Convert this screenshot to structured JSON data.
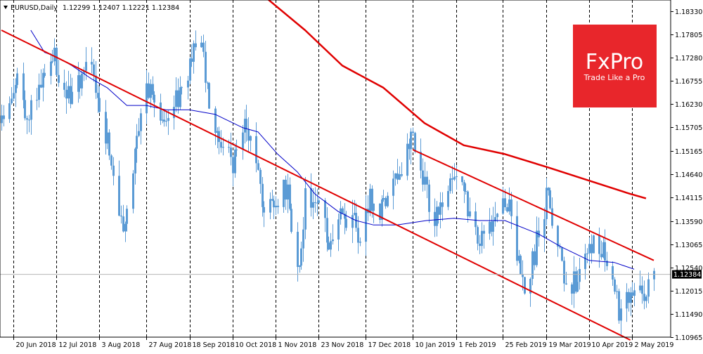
{
  "chart_data": {
    "type": "candlestick",
    "title": "EURUSD,Daily",
    "ohlc_text": "1.12299 1.12407 1.12221 1.12384",
    "current_price": 1.12384,
    "current_price_label": "1.12384",
    "ylim": [
      1.10965,
      1.18582
    ],
    "y_ticks": [
      {
        "value": 1.1833,
        "label": "1.18330"
      },
      {
        "value": 1.17805,
        "label": "1.17805"
      },
      {
        "value": 1.1728,
        "label": "1.17280"
      },
      {
        "value": 1.16755,
        "label": "1.16755"
      },
      {
        "value": 1.1623,
        "label": "1.16230"
      },
      {
        "value": 1.15705,
        "label": "1.15705"
      },
      {
        "value": 1.15165,
        "label": "1.15165"
      },
      {
        "value": 1.1464,
        "label": "1.14640"
      },
      {
        "value": 1.14115,
        "label": "1.14115"
      },
      {
        "value": 1.1359,
        "label": "1.13590"
      },
      {
        "value": 1.13065,
        "label": "1.13065"
      },
      {
        "value": 1.1254,
        "label": "1.12540"
      },
      {
        "value": 1.12015,
        "label": "1.12015"
      },
      {
        "value": 1.1149,
        "label": "1.11490"
      },
      {
        "value": 1.10965,
        "label": "1.10965"
      }
    ],
    "x_ticks": [
      {
        "date": "2018-06-20",
        "label": "20 Jun 2018"
      },
      {
        "date": "2018-07-12",
        "label": "12 Jul 2018"
      },
      {
        "date": "2018-08-03",
        "label": "3 Aug 2018"
      },
      {
        "date": "2018-08-27",
        "label": "27 Aug 2018"
      },
      {
        "date": "2018-09-18",
        "label": "18 Sep 2018"
      },
      {
        "date": "2018-10-10",
        "label": "10 Oct 2018"
      },
      {
        "date": "2018-11-01",
        "label": "1 Nov 2018"
      },
      {
        "date": "2018-11-23",
        "label": "23 Nov 2018"
      },
      {
        "date": "2018-12-17",
        "label": "17 Dec 2018"
      },
      {
        "date": "2019-01-10",
        "label": "10 Jan 2019"
      },
      {
        "date": "2019-02-01",
        "label": "1 Feb 2019"
      },
      {
        "date": "2019-02-25",
        "label": "25 Feb 2019"
      },
      {
        "date": "2019-03-19",
        "label": "19 Mar 2019"
      },
      {
        "date": "2019-04-10",
        "label": "10 Apr 2019"
      },
      {
        "date": "2019-05-02",
        "label": "2 May 2019"
      }
    ],
    "price_path": [
      {
        "date": "2018-06-14",
        "close": 1.158
      },
      {
        "date": "2018-06-18",
        "close": 1.162
      },
      {
        "date": "2018-06-22",
        "close": 1.166
      },
      {
        "date": "2018-06-27",
        "close": 1.159
      },
      {
        "date": "2018-07-03",
        "close": 1.166
      },
      {
        "date": "2018-07-09",
        "close": 1.175
      },
      {
        "date": "2018-07-13",
        "close": 1.169
      },
      {
        "date": "2018-07-19",
        "close": 1.164
      },
      {
        "date": "2018-07-25",
        "close": 1.17
      },
      {
        "date": "2018-07-31",
        "close": 1.168
      },
      {
        "date": "2018-08-06",
        "close": 1.156
      },
      {
        "date": "2018-08-10",
        "close": 1.143
      },
      {
        "date": "2018-08-15",
        "close": 1.134
      },
      {
        "date": "2018-08-20",
        "close": 1.147
      },
      {
        "date": "2018-08-24",
        "close": 1.16
      },
      {
        "date": "2018-08-29",
        "close": 1.167
      },
      {
        "date": "2018-09-03",
        "close": 1.16
      },
      {
        "date": "2018-09-07",
        "close": 1.156
      },
      {
        "date": "2018-09-13",
        "close": 1.166
      },
      {
        "date": "2018-09-19",
        "close": 1.172
      },
      {
        "date": "2018-09-24",
        "close": 1.177
      },
      {
        "date": "2018-09-28",
        "close": 1.161
      },
      {
        "date": "2018-10-04",
        "close": 1.152
      },
      {
        "date": "2018-10-10",
        "close": 1.149
      },
      {
        "date": "2018-10-16",
        "close": 1.158
      },
      {
        "date": "2018-10-22",
        "close": 1.148
      },
      {
        "date": "2018-10-26",
        "close": 1.14
      },
      {
        "date": "2018-11-01",
        "close": 1.14
      },
      {
        "date": "2018-11-07",
        "close": 1.143
      },
      {
        "date": "2018-11-12",
        "close": 1.123
      },
      {
        "date": "2018-11-16",
        "close": 1.141
      },
      {
        "date": "2018-11-22",
        "close": 1.14
      },
      {
        "date": "2018-11-28",
        "close": 1.132
      },
      {
        "date": "2018-12-04",
        "close": 1.137
      },
      {
        "date": "2018-12-10",
        "close": 1.137
      },
      {
        "date": "2018-12-14",
        "close": 1.131
      },
      {
        "date": "2018-12-19",
        "close": 1.141
      },
      {
        "date": "2018-12-26",
        "close": 1.138
      },
      {
        "date": "2019-01-02",
        "close": 1.147
      },
      {
        "date": "2019-01-08",
        "close": 1.152
      },
      {
        "date": "2019-01-10",
        "close": 1.154
      },
      {
        "date": "2019-01-15",
        "close": 1.144
      },
      {
        "date": "2019-01-21",
        "close": 1.137
      },
      {
        "date": "2019-01-25",
        "close": 1.141
      },
      {
        "date": "2019-01-31",
        "close": 1.148
      },
      {
        "date": "2019-02-05",
        "close": 1.143
      },
      {
        "date": "2019-02-11",
        "close": 1.133
      },
      {
        "date": "2019-02-15",
        "close": 1.13
      },
      {
        "date": "2019-02-21",
        "close": 1.135
      },
      {
        "date": "2019-02-26",
        "close": 1.139
      },
      {
        "date": "2019-03-01",
        "close": 1.137
      },
      {
        "date": "2019-03-07",
        "close": 1.12
      },
      {
        "date": "2019-03-11",
        "close": 1.125
      },
      {
        "date": "2019-03-15",
        "close": 1.133
      },
      {
        "date": "2019-03-20",
        "close": 1.142
      },
      {
        "date": "2019-03-25",
        "close": 1.131
      },
      {
        "date": "2019-03-29",
        "close": 1.122
      },
      {
        "date": "2019-04-03",
        "close": 1.122
      },
      {
        "date": "2019-04-09",
        "close": 1.127
      },
      {
        "date": "2019-04-12",
        "close": 1.13
      },
      {
        "date": "2019-04-17",
        "close": 1.13
      },
      {
        "date": "2019-04-23",
        "close": 1.122
      },
      {
        "date": "2019-04-26",
        "close": 1.113
      },
      {
        "date": "2019-05-01",
        "close": 1.121
      },
      {
        "date": "2019-05-06",
        "close": 1.119
      },
      {
        "date": "2019-05-09",
        "close": 1.122
      },
      {
        "date": "2019-05-13",
        "close": 1.1238
      }
    ],
    "overlays": [
      {
        "kind": "moving-average",
        "color": "#0000c8",
        "points": [
          {
            "date": "2018-06-29",
            "value": 1.179
          },
          {
            "date": "2018-07-06",
            "value": 1.174
          },
          {
            "date": "2018-07-12",
            "value": 1.173
          },
          {
            "date": "2018-07-20",
            "value": 1.171
          },
          {
            "date": "2018-07-30",
            "value": 1.168
          },
          {
            "date": "2018-08-07",
            "value": 1.166
          },
          {
            "date": "2018-08-17",
            "value": 1.162
          },
          {
            "date": "2018-08-27",
            "value": 1.162
          },
          {
            "date": "2018-09-06",
            "value": 1.161
          },
          {
            "date": "2018-09-18",
            "value": 1.161
          },
          {
            "date": "2018-10-01",
            "value": 1.16
          },
          {
            "date": "2018-10-15",
            "value": 1.157
          },
          {
            "date": "2018-10-23",
            "value": 1.156
          },
          {
            "date": "2018-11-02",
            "value": 1.151
          },
          {
            "date": "2018-11-12",
            "value": 1.147
          },
          {
            "date": "2018-11-21",
            "value": 1.142
          },
          {
            "date": "2018-12-03",
            "value": 1.138
          },
          {
            "date": "2018-12-12",
            "value": 1.136
          },
          {
            "date": "2018-12-21",
            "value": 1.135
          },
          {
            "date": "2019-01-02",
            "value": 1.135
          },
          {
            "date": "2019-01-17",
            "value": 1.136
          },
          {
            "date": "2019-01-31",
            "value": 1.1365
          },
          {
            "date": "2019-02-13",
            "value": 1.136
          },
          {
            "date": "2019-02-26",
            "value": 1.136
          },
          {
            "date": "2019-03-15",
            "value": 1.133
          },
          {
            "date": "2019-03-27",
            "value": 1.13
          },
          {
            "date": "2019-04-10",
            "value": 1.127
          },
          {
            "date": "2019-04-23",
            "value": 1.1265
          },
          {
            "date": "2019-05-03",
            "value": 1.125
          }
        ]
      },
      {
        "kind": "moving-average",
        "color": "#e00000",
        "points": [
          {
            "date": "2018-10-28",
            "value": 1.186
          },
          {
            "date": "2018-11-16",
            "value": 1.179
          },
          {
            "date": "2018-12-05",
            "value": 1.171
          },
          {
            "date": "2018-12-26",
            "value": 1.166
          },
          {
            "date": "2019-01-16",
            "value": 1.158
          },
          {
            "date": "2019-02-05",
            "value": 1.153
          },
          {
            "date": "2019-02-26",
            "value": 1.151
          },
          {
            "date": "2019-03-20",
            "value": 1.148
          },
          {
            "date": "2019-04-10",
            "value": 1.145
          },
          {
            "date": "2019-05-01",
            "value": 1.142
          },
          {
            "date": "2019-05-09",
            "value": 1.141
          }
        ]
      },
      {
        "kind": "trendline",
        "color": "#e00000",
        "points": [
          {
            "date": "2018-06-14",
            "value": 1.179
          },
          {
            "date": "2019-05-01",
            "value": 1.109
          }
        ]
      },
      {
        "kind": "trendline",
        "color": "#e00000",
        "points": [
          {
            "date": "2019-01-10",
            "value": 1.152
          },
          {
            "date": "2019-05-13",
            "value": 1.127
          }
        ]
      }
    ],
    "grid": "vertical-dashed",
    "colors": {
      "candle": "#5b9bd5",
      "ma_fast": "#0000c8",
      "ma_slow": "#e00000",
      "trendline": "#e00000",
      "current_price_line": "#b4b4b4"
    }
  },
  "watermark": {
    "brand": "FxPro",
    "tagline": "Trade Like a Pro",
    "background": "#e8262b"
  }
}
